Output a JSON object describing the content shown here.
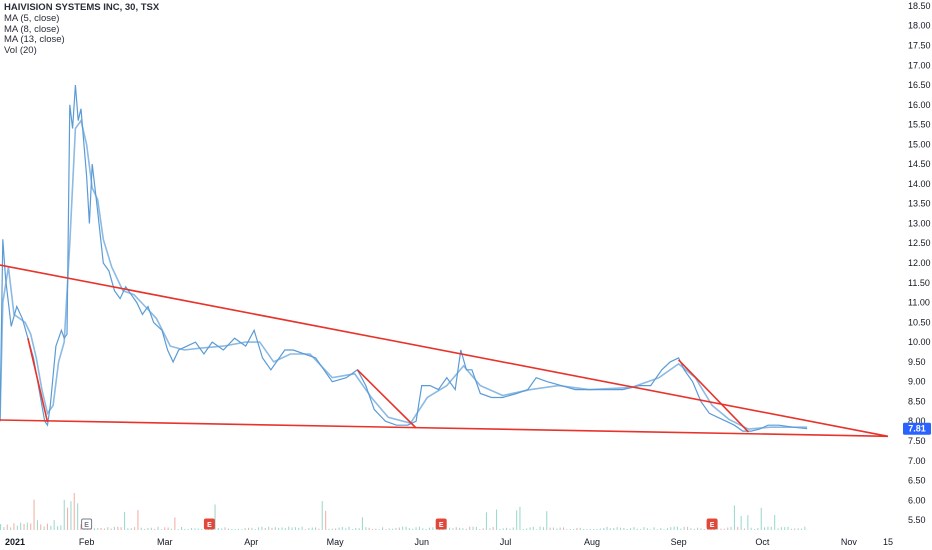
{
  "legend": {
    "symbol": "HAIVISION SYSTEMS INC, 30, TSX",
    "ma5": "MA (5, close)",
    "ma8": "MA (8, close)",
    "ma13": "MA (13, close)",
    "vol": "Vol (20)"
  },
  "last_price": "7.81",
  "colors": {
    "price_line": "#5b9bd5",
    "ma_line": "#7fb3e0",
    "trendline": "#e8332a",
    "up_volume": "#8fd3c7",
    "down_volume": "#f2a49b",
    "price_label_bg": "#2962ff",
    "earnings_red": "#e0483c",
    "earnings_gray": "#787b86",
    "axis_text": "#131722"
  },
  "chart_data": {
    "type": "line",
    "title": "HAIVISION SYSTEMS INC, 30, TSX",
    "ylim": [
      5.25,
      18.65
    ],
    "y_ticks": [
      "18.50",
      "18.00",
      "17.50",
      "17.00",
      "16.50",
      "16.00",
      "15.50",
      "15.00",
      "14.50",
      "14.00",
      "13.50",
      "13.00",
      "12.50",
      "12.00",
      "11.50",
      "11.00",
      "10.50",
      "10.00",
      "9.50",
      "9.00",
      "8.50",
      "8.00",
      "7.50",
      "7.00",
      "6.50",
      "6.00",
      "5.50"
    ],
    "x_domain": [
      "2021-01-01",
      "2021-11-20"
    ],
    "x_ticks": [
      {
        "label": "2021",
        "date": "2021-01-01",
        "year": true
      },
      {
        "label": "Feb",
        "date": "2021-02-01"
      },
      {
        "label": "Mar",
        "date": "2021-03-01"
      },
      {
        "label": "Apr",
        "date": "2021-04-01"
      },
      {
        "label": "May",
        "date": "2021-05-01"
      },
      {
        "label": "Jun",
        "date": "2021-06-01"
      },
      {
        "label": "Jul",
        "date": "2021-07-01"
      },
      {
        "label": "Aug",
        "date": "2021-08-01"
      },
      {
        "label": "Sep",
        "date": "2021-09-01"
      },
      {
        "label": "Oct",
        "date": "2021-10-01"
      },
      {
        "label": "Nov",
        "date": "2021-11-01"
      },
      {
        "label": "15",
        "date": "2021-11-15"
      }
    ],
    "series": [
      {
        "kind": "price",
        "points": [
          [
            "2021-01-01",
            8.0
          ],
          [
            "2021-01-02",
            12.6
          ],
          [
            "2021-01-03",
            11.6
          ],
          [
            "2021-01-05",
            10.4
          ],
          [
            "2021-01-07",
            10.9
          ],
          [
            "2021-01-09",
            10.6
          ],
          [
            "2021-01-11",
            10.1
          ],
          [
            "2021-01-13",
            9.6
          ],
          [
            "2021-01-15",
            8.8
          ],
          [
            "2021-01-17",
            8.0
          ],
          [
            "2021-01-18",
            7.9
          ],
          [
            "2021-01-19",
            8.4
          ],
          [
            "2021-01-21",
            9.9
          ],
          [
            "2021-01-23",
            10.3
          ],
          [
            "2021-01-24",
            10.1
          ],
          [
            "2021-01-25",
            10.2
          ],
          [
            "2021-01-26",
            16.0
          ],
          [
            "2021-01-27",
            15.4
          ],
          [
            "2021-01-28",
            16.5
          ],
          [
            "2021-01-29",
            15.6
          ],
          [
            "2021-01-30",
            15.9
          ],
          [
            "2021-02-01",
            14.2
          ],
          [
            "2021-02-02",
            13.0
          ],
          [
            "2021-02-03",
            14.5
          ],
          [
            "2021-02-05",
            13.3
          ],
          [
            "2021-02-07",
            12.0
          ],
          [
            "2021-02-09",
            11.8
          ],
          [
            "2021-02-11",
            11.3
          ],
          [
            "2021-02-13",
            11.1
          ],
          [
            "2021-02-15",
            11.4
          ],
          [
            "2021-02-17",
            11.2
          ],
          [
            "2021-02-19",
            11.0
          ],
          [
            "2021-02-21",
            10.7
          ],
          [
            "2021-02-23",
            10.9
          ],
          [
            "2021-02-25",
            10.5
          ],
          [
            "2021-02-28",
            10.3
          ],
          [
            "2021-03-02",
            9.8
          ],
          [
            "2021-03-04",
            9.5
          ],
          [
            "2021-03-06",
            9.8
          ],
          [
            "2021-03-09",
            9.9
          ],
          [
            "2021-03-12",
            10.0
          ],
          [
            "2021-03-15",
            9.7
          ],
          [
            "2021-03-18",
            10.0
          ],
          [
            "2021-03-22",
            9.8
          ],
          [
            "2021-03-26",
            10.1
          ],
          [
            "2021-03-30",
            9.9
          ],
          [
            "2021-04-02",
            10.3
          ],
          [
            "2021-04-05",
            9.6
          ],
          [
            "2021-04-08",
            9.3
          ],
          [
            "2021-04-10",
            9.5
          ],
          [
            "2021-04-13",
            9.8
          ],
          [
            "2021-04-16",
            9.8
          ],
          [
            "2021-04-20",
            9.7
          ],
          [
            "2021-04-24",
            9.6
          ],
          [
            "2021-04-27",
            9.3
          ],
          [
            "2021-04-30",
            9.0
          ],
          [
            "2021-05-05",
            9.1
          ],
          [
            "2021-05-09",
            9.3
          ],
          [
            "2021-05-12",
            8.9
          ],
          [
            "2021-05-15",
            8.3
          ],
          [
            "2021-05-19",
            8.0
          ],
          [
            "2021-05-23",
            7.9
          ],
          [
            "2021-05-27",
            7.9
          ],
          [
            "2021-05-30",
            8.0
          ],
          [
            "2021-06-01",
            8.9
          ],
          [
            "2021-06-04",
            8.9
          ],
          [
            "2021-06-07",
            8.8
          ],
          [
            "2021-06-10",
            9.1
          ],
          [
            "2021-06-13",
            8.8
          ],
          [
            "2021-06-15",
            9.8
          ],
          [
            "2021-06-17",
            9.3
          ],
          [
            "2021-06-19",
            9.3
          ],
          [
            "2021-06-22",
            8.7
          ],
          [
            "2021-06-26",
            8.6
          ],
          [
            "2021-06-30",
            8.6
          ],
          [
            "2021-07-05",
            8.7
          ],
          [
            "2021-07-09",
            8.8
          ],
          [
            "2021-07-12",
            9.1
          ],
          [
            "2021-07-16",
            9.0
          ],
          [
            "2021-07-21",
            8.9
          ],
          [
            "2021-07-26",
            8.8
          ],
          [
            "2021-07-31",
            8.8
          ],
          [
            "2021-08-06",
            8.8
          ],
          [
            "2021-08-12",
            8.8
          ],
          [
            "2021-08-18",
            8.9
          ],
          [
            "2021-08-22",
            8.9
          ],
          [
            "2021-08-26",
            9.3
          ],
          [
            "2021-08-29",
            9.5
          ],
          [
            "2021-09-01",
            9.6
          ],
          [
            "2021-09-03",
            9.3
          ],
          [
            "2021-09-06",
            9.0
          ],
          [
            "2021-09-09",
            8.5
          ],
          [
            "2021-09-12",
            8.2
          ],
          [
            "2021-09-15",
            8.1
          ],
          [
            "2021-09-18",
            8.0
          ],
          [
            "2021-09-21",
            7.9
          ],
          [
            "2021-09-24",
            7.75
          ],
          [
            "2021-09-27",
            7.75
          ],
          [
            "2021-09-30",
            7.8
          ],
          [
            "2021-10-03",
            7.9
          ],
          [
            "2021-10-07",
            7.9
          ],
          [
            "2021-10-12",
            7.85
          ],
          [
            "2021-10-17",
            7.81
          ]
        ]
      },
      {
        "kind": "moving-average",
        "points": [
          [
            "2021-01-01",
            8.0
          ],
          [
            "2021-01-02",
            11.0
          ],
          [
            "2021-01-04",
            11.9
          ],
          [
            "2021-01-06",
            10.7
          ],
          [
            "2021-01-08",
            10.6
          ],
          [
            "2021-01-10",
            10.5
          ],
          [
            "2021-01-12",
            10.2
          ],
          [
            "2021-01-14",
            9.6
          ],
          [
            "2021-01-16",
            8.8
          ],
          [
            "2021-01-18",
            8.2
          ],
          [
            "2021-01-20",
            8.4
          ],
          [
            "2021-01-22",
            9.5
          ],
          [
            "2021-01-24",
            10.0
          ],
          [
            "2021-01-26",
            12.5
          ],
          [
            "2021-01-28",
            15.4
          ],
          [
            "2021-01-30",
            15.6
          ],
          [
            "2021-02-01",
            15.0
          ],
          [
            "2021-02-03",
            13.9
          ],
          [
            "2021-02-05",
            13.6
          ],
          [
            "2021-02-07",
            12.6
          ],
          [
            "2021-02-10",
            11.9
          ],
          [
            "2021-02-14",
            11.3
          ],
          [
            "2021-02-18",
            11.2
          ],
          [
            "2021-02-22",
            10.9
          ],
          [
            "2021-02-26",
            10.6
          ],
          [
            "2021-03-03",
            9.9
          ],
          [
            "2021-03-08",
            9.8
          ],
          [
            "2021-03-14",
            9.85
          ],
          [
            "2021-03-22",
            9.9
          ],
          [
            "2021-03-30",
            10.0
          ],
          [
            "2021-04-04",
            10.0
          ],
          [
            "2021-04-09",
            9.5
          ],
          [
            "2021-04-15",
            9.7
          ],
          [
            "2021-04-22",
            9.7
          ],
          [
            "2021-04-30",
            9.1
          ],
          [
            "2021-05-08",
            9.2
          ],
          [
            "2021-05-14",
            8.6
          ],
          [
            "2021-05-20",
            8.1
          ],
          [
            "2021-05-28",
            7.95
          ],
          [
            "2021-06-03",
            8.6
          ],
          [
            "2021-06-10",
            8.9
          ],
          [
            "2021-06-16",
            9.4
          ],
          [
            "2021-06-22",
            8.9
          ],
          [
            "2021-06-30",
            8.65
          ],
          [
            "2021-07-10",
            8.8
          ],
          [
            "2021-07-20",
            8.9
          ],
          [
            "2021-07-31",
            8.8
          ],
          [
            "2021-08-15",
            8.85
          ],
          [
            "2021-08-25",
            9.1
          ],
          [
            "2021-09-01",
            9.45
          ],
          [
            "2021-09-07",
            9.1
          ],
          [
            "2021-09-13",
            8.4
          ],
          [
            "2021-09-19",
            8.05
          ],
          [
            "2021-09-26",
            7.8
          ],
          [
            "2021-10-04",
            7.85
          ],
          [
            "2021-10-17",
            7.85
          ]
        ]
      }
    ],
    "trendlines": [
      {
        "from": [
          "2021-01-01",
          11.95
        ],
        "to": [
          "2021-11-15",
          7.62
        ]
      },
      {
        "from": [
          "2021-01-01",
          8.03
        ],
        "to": [
          "2021-11-15",
          7.62
        ]
      },
      {
        "from": [
          "2021-01-11",
          10.1
        ],
        "to": [
          "2021-01-18",
          7.98
        ]
      },
      {
        "from": [
          "2021-05-09",
          9.3
        ],
        "to": [
          "2021-05-30",
          7.83
        ]
      },
      {
        "from": [
          "2021-09-01",
          9.55
        ],
        "to": [
          "2021-09-26",
          7.73
        ]
      }
    ],
    "earnings_markers": [
      {
        "date": "2021-02-01",
        "label": "E",
        "style": "gray"
      },
      {
        "date": "2021-03-17",
        "label": "E",
        "style": "red"
      },
      {
        "date": "2021-06-08",
        "label": "E",
        "style": "red"
      },
      {
        "date": "2021-09-13",
        "label": "E",
        "style": "red"
      }
    ]
  }
}
